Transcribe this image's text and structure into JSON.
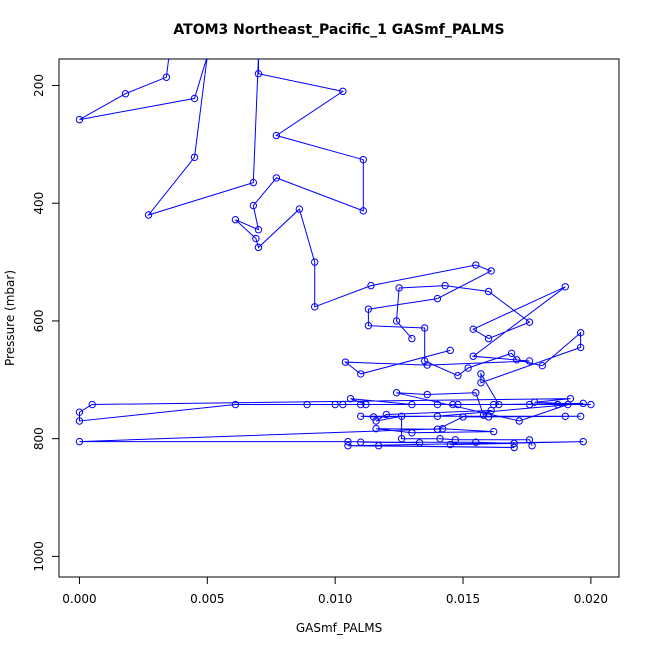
{
  "chart_data": {
    "type": "line",
    "title": "ATOM3 Northeast_Pacific_1 GASmf_PALMS",
    "xlabel": "GASmf_PALMS",
    "ylabel": "Pressure (mbar)",
    "xlim": [
      -0.0008,
      0.0211
    ],
    "ylim": [
      1035,
      155
    ],
    "y_reversed": true,
    "x_ticks": [
      0.0,
      0.005,
      0.01,
      0.015,
      0.02
    ],
    "x_tick_labels": [
      "0.000",
      "0.005",
      "0.010",
      "0.015",
      "0.020"
    ],
    "y_ticks": [
      200,
      400,
      600,
      800,
      1000
    ],
    "y_tick_labels": [
      "200",
      "400",
      "600",
      "800",
      "1000"
    ],
    "grid": false,
    "legend": "none",
    "series": [
      {
        "color": "#0000ff",
        "marker": "open-circle",
        "points": [
          [
            0.0035,
            150
          ],
          [
            0.0034,
            186
          ],
          [
            0.0018,
            214
          ],
          [
            0.0,
            258
          ],
          [
            0.0045,
            222
          ],
          [
            0.005,
            150
          ],
          [
            0.0045,
            322
          ],
          [
            0.0027,
            420
          ],
          [
            0.0068,
            365
          ],
          [
            0.007,
            150
          ],
          [
            0.007,
            180
          ],
          [
            0.0103,
            210
          ],
          [
            0.0077,
            285
          ],
          [
            0.0111,
            326
          ],
          [
            0.0111,
            413
          ],
          [
            0.0077,
            357
          ],
          [
            0.0068,
            404
          ],
          [
            0.007,
            445
          ],
          [
            0.0061,
            428
          ],
          [
            0.0069,
            460
          ],
          [
            0.007,
            475
          ],
          [
            0.0086,
            410
          ],
          [
            0.0092,
            500
          ],
          [
            0.0092,
            576
          ],
          [
            0.0114,
            540
          ],
          [
            0.0155,
            505
          ],
          [
            0.0161,
            515
          ],
          [
            0.014,
            562
          ],
          [
            0.0113,
            580
          ],
          [
            0.0113,
            608
          ],
          [
            0.0135,
            612
          ],
          [
            0.0135,
            668
          ],
          [
            0.0148,
            693
          ],
          [
            0.0152,
            680
          ],
          [
            0.0169,
            655
          ],
          [
            0.0171,
            666
          ],
          [
            0.0181,
            676
          ],
          [
            0.0196,
            620
          ],
          [
            0.0196,
            645
          ],
          [
            0.0157,
            705
          ],
          [
            0.0157,
            690
          ],
          [
            0.0164,
            742
          ],
          [
            0.02,
            742
          ],
          [
            0.0178,
            738
          ],
          [
            0.0192,
            732
          ],
          [
            0.0005,
            742
          ],
          [
            0.0,
            755
          ],
          [
            0.0,
            770
          ],
          [
            0.0061,
            742
          ],
          [
            0.011,
            742
          ],
          [
            0.0146,
            742
          ],
          [
            0.0162,
            742
          ],
          [
            0.0197,
            740
          ],
          [
            0.014,
            762
          ],
          [
            0.0115,
            763
          ],
          [
            0.011,
            762
          ],
          [
            0.019,
            762
          ],
          [
            0.0196,
            762
          ],
          [
            0.016,
            763
          ],
          [
            0.015,
            763
          ],
          [
            0.014,
            784
          ],
          [
            0.0116,
            783
          ],
          [
            0.013,
            790
          ],
          [
            0.0162,
            788
          ],
          [
            0.0142,
            783
          ],
          [
            0.0,
            805
          ],
          [
            0.0105,
            805
          ],
          [
            0.0133,
            807
          ],
          [
            0.011,
            806
          ],
          [
            0.0155,
            806
          ],
          [
            0.017,
            808
          ],
          [
            0.0145,
            810
          ],
          [
            0.0197,
            805
          ],
          [
            0.0105,
            812
          ],
          [
            0.017,
            815
          ],
          [
            0.0117,
            812
          ]
        ]
      },
      {
        "color": "#0000ff",
        "marker": "open-circle",
        "points": [
          [
            0.0089,
            742
          ],
          [
            0.01,
            742
          ],
          [
            0.0103,
            742
          ],
          [
            0.0112,
            742
          ],
          [
            0.0106,
            732
          ],
          [
            0.013,
            742
          ],
          [
            0.014,
            742
          ],
          [
            0.0148,
            742
          ],
          [
            0.0176,
            742
          ],
          [
            0.0187,
            742
          ],
          [
            0.0191,
            742
          ],
          [
            0.0172,
            770
          ],
          [
            0.0124,
            722
          ],
          [
            0.0136,
            725
          ],
          [
            0.0155,
            722
          ],
          [
            0.0158,
            760
          ],
          [
            0.0161,
            752
          ],
          [
            0.012,
            759
          ],
          [
            0.0116,
            770
          ],
          [
            0.0126,
            762
          ],
          [
            0.0126,
            800
          ],
          [
            0.0141,
            800
          ],
          [
            0.0147,
            802
          ],
          [
            0.0176,
            802
          ],
          [
            0.0177,
            812
          ]
        ]
      },
      {
        "color": "#0000ff",
        "marker": "open-circle",
        "points": [
          [
            0.013,
            630
          ],
          [
            0.0124,
            600
          ],
          [
            0.0125,
            544
          ],
          [
            0.0143,
            540
          ],
          [
            0.016,
            550
          ],
          [
            0.0176,
            602
          ],
          [
            0.016,
            630
          ],
          [
            0.0154,
            614
          ],
          [
            0.019,
            542
          ],
          [
            0.0154,
            660
          ],
          [
            0.0176,
            668
          ],
          [
            0.0136,
            675
          ],
          [
            0.0104,
            670
          ],
          [
            0.011,
            690
          ],
          [
            0.0145,
            650
          ]
        ]
      }
    ]
  }
}
